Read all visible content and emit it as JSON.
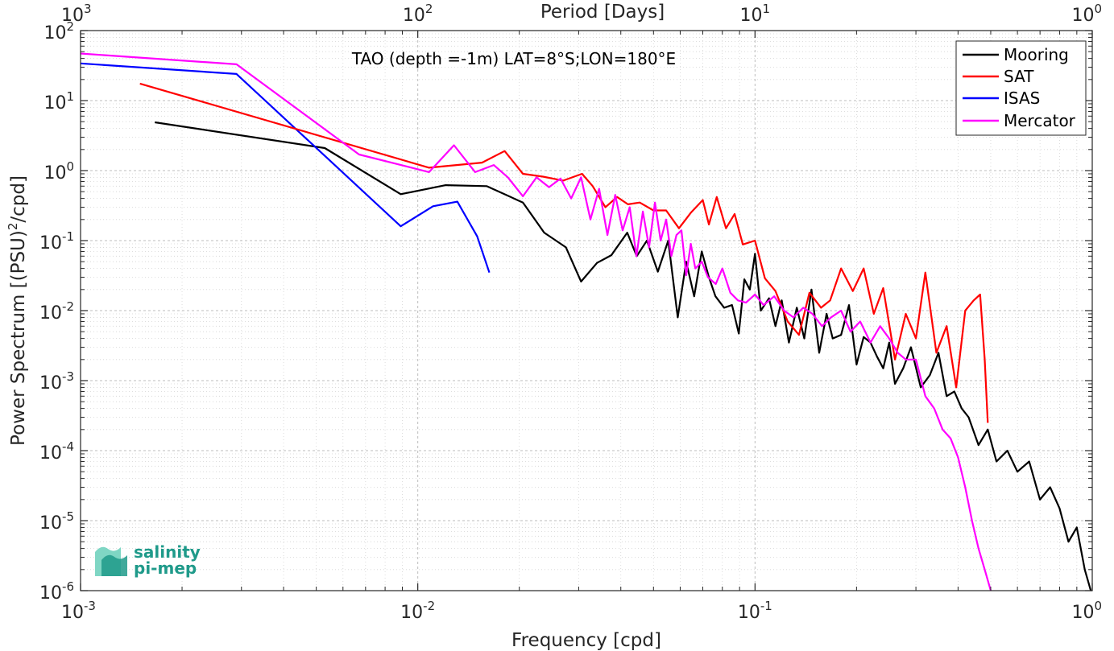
{
  "chart_data": {
    "type": "line",
    "title": "TAO (depth =-1m) LAT=8°S;LON=180°E",
    "xlabel": "Frequency [cpd]",
    "ylabel": "Power Spectrum [(PSU)²/cpd]",
    "ylabel_parts": {
      "before": "Power Spectrum [(PSU)",
      "sup": "2",
      "after": "/cpd]"
    },
    "top_xlabel": "Period [Days]",
    "xscale": "log",
    "yscale": "log",
    "xlim": [
      0.001,
      1
    ],
    "ylim": [
      1e-06,
      100
    ],
    "grid": true,
    "legend_position": "top-right",
    "x_ticks": [
      {
        "value": 0.001,
        "base": "10",
        "exp": "-3"
      },
      {
        "value": 0.01,
        "base": "10",
        "exp": "-2"
      },
      {
        "value": 0.1,
        "base": "10",
        "exp": "-1"
      },
      {
        "value": 1,
        "base": "10",
        "exp": "0"
      }
    ],
    "top_ticks": [
      {
        "freq": 0.001,
        "base": "10",
        "exp": "3"
      },
      {
        "freq": 0.01,
        "base": "10",
        "exp": "2"
      },
      {
        "freq": 0.1,
        "base": "10",
        "exp": "1"
      },
      {
        "freq": 1,
        "base": "10",
        "exp": "0"
      }
    ],
    "y_ticks": [
      {
        "value": 100,
        "base": "10",
        "exp": "2"
      },
      {
        "value": 10,
        "base": "10",
        "exp": "1"
      },
      {
        "value": 1,
        "base": "10",
        "exp": "0"
      },
      {
        "value": 0.1,
        "base": "10",
        "exp": "-1"
      },
      {
        "value": 0.01,
        "base": "10",
        "exp": "-2"
      },
      {
        "value": 0.001,
        "base": "10",
        "exp": "-3"
      },
      {
        "value": 0.0001,
        "base": "10",
        "exp": "-4"
      },
      {
        "value": 1e-05,
        "base": "10",
        "exp": "-5"
      },
      {
        "value": 1e-06,
        "base": "10",
        "exp": "-6"
      }
    ],
    "series": [
      {
        "name": "Mooring",
        "color": "#000000",
        "x": [
          0.00166,
          0.0053,
          0.0089,
          0.0121,
          0.016,
          0.0205,
          0.0237,
          0.0275,
          0.0305,
          0.034,
          0.0375,
          0.0418,
          0.0446,
          0.0478,
          0.0515,
          0.0553,
          0.059,
          0.0625,
          0.066,
          0.0695,
          0.073,
          0.0763,
          0.081,
          0.0855,
          0.0895,
          0.093,
          0.0965,
          0.1,
          0.104,
          0.11,
          0.115,
          0.12,
          0.126,
          0.133,
          0.14,
          0.147,
          0.155,
          0.163,
          0.17,
          0.18,
          0.19,
          0.2,
          0.21,
          0.22,
          0.23,
          0.24,
          0.25,
          0.26,
          0.275,
          0.29,
          0.31,
          0.33,
          0.35,
          0.37,
          0.39,
          0.41,
          0.43,
          0.46,
          0.49,
          0.52,
          0.56,
          0.6,
          0.65,
          0.7,
          0.75,
          0.8,
          0.85,
          0.9,
          0.95,
          0.99
        ],
        "values": [
          4.9,
          2.1,
          0.46,
          0.62,
          0.6,
          0.35,
          0.13,
          0.08,
          0.026,
          0.048,
          0.062,
          0.13,
          0.06,
          0.1,
          0.036,
          0.1,
          0.008,
          0.05,
          0.016,
          0.07,
          0.03,
          0.016,
          0.011,
          0.012,
          0.0047,
          0.028,
          0.02,
          0.065,
          0.01,
          0.015,
          0.006,
          0.014,
          0.0035,
          0.011,
          0.004,
          0.02,
          0.0025,
          0.009,
          0.004,
          0.0045,
          0.012,
          0.0017,
          0.0042,
          0.0035,
          0.0022,
          0.0015,
          0.0035,
          0.0009,
          0.0015,
          0.003,
          0.0008,
          0.0012,
          0.0025,
          0.0006,
          0.0007,
          0.0004,
          0.0003,
          0.00012,
          0.0002,
          7e-05,
          0.0001,
          5e-05,
          7e-05,
          2e-05,
          3e-05,
          1.5e-05,
          5e-06,
          8e-06,
          2e-06,
          1e-06
        ]
      },
      {
        "name": "SAT",
        "color": "#ff0000",
        "x": [
          0.0015,
          0.0108,
          0.0155,
          0.0181,
          0.0205,
          0.0235,
          0.027,
          0.0307,
          0.033,
          0.036,
          0.039,
          0.042,
          0.0455,
          0.05,
          0.0545,
          0.0595,
          0.0645,
          0.07,
          0.073,
          0.077,
          0.082,
          0.087,
          0.092,
          0.1,
          0.107,
          0.115,
          0.125,
          0.135,
          0.145,
          0.157,
          0.167,
          0.18,
          0.195,
          0.21,
          0.225,
          0.24,
          0.26,
          0.28,
          0.3,
          0.32,
          0.345,
          0.37,
          0.395,
          0.42,
          0.445,
          0.465,
          0.48,
          0.49
        ],
        "values": [
          17.5,
          1.1,
          1.3,
          1.9,
          0.9,
          0.82,
          0.72,
          0.9,
          0.6,
          0.3,
          0.42,
          0.33,
          0.35,
          0.27,
          0.27,
          0.15,
          0.25,
          0.38,
          0.17,
          0.42,
          0.15,
          0.24,
          0.088,
          0.1,
          0.029,
          0.019,
          0.007,
          0.0045,
          0.018,
          0.011,
          0.014,
          0.04,
          0.019,
          0.04,
          0.009,
          0.021,
          0.002,
          0.009,
          0.004,
          0.035,
          0.0025,
          0.006,
          0.0008,
          0.01,
          0.014,
          0.017,
          0.002,
          0.00025
        ]
      },
      {
        "name": "ISAS",
        "color": "#0000ff",
        "x": [
          0.001,
          0.0029,
          0.0089,
          0.0111,
          0.0131,
          0.015,
          0.0163
        ],
        "values": [
          34,
          24,
          0.16,
          0.31,
          0.36,
          0.115,
          0.035
        ]
      },
      {
        "name": "Mercator",
        "color": "#ff00ff",
        "x": [
          0.001,
          0.0029,
          0.0067,
          0.0108,
          0.0128,
          0.0148,
          0.0168,
          0.0185,
          0.0205,
          0.0225,
          0.0245,
          0.0265,
          0.0285,
          0.0305,
          0.0325,
          0.0345,
          0.0365,
          0.0385,
          0.0405,
          0.0425,
          0.0445,
          0.0465,
          0.0485,
          0.0505,
          0.0525,
          0.0545,
          0.0565,
          0.0585,
          0.0605,
          0.0625,
          0.0645,
          0.0665,
          0.0695,
          0.0725,
          0.0765,
          0.08,
          0.0845,
          0.089,
          0.094,
          0.1,
          0.106,
          0.114,
          0.122,
          0.13,
          0.139,
          0.148,
          0.158,
          0.168,
          0.18,
          0.192,
          0.205,
          0.22,
          0.235,
          0.25,
          0.265,
          0.28,
          0.3,
          0.32,
          0.34,
          0.36,
          0.38,
          0.4,
          0.42,
          0.44,
          0.46,
          0.48,
          0.5
        ],
        "values": [
          47,
          33,
          1.7,
          0.95,
          2.3,
          0.95,
          1.2,
          0.8,
          0.43,
          0.8,
          0.58,
          0.77,
          0.4,
          0.8,
          0.2,
          0.55,
          0.12,
          0.45,
          0.14,
          0.3,
          0.06,
          0.26,
          0.08,
          0.35,
          0.1,
          0.2,
          0.06,
          0.12,
          0.14,
          0.032,
          0.09,
          0.04,
          0.05,
          0.03,
          0.024,
          0.04,
          0.018,
          0.014,
          0.013,
          0.017,
          0.012,
          0.016,
          0.01,
          0.008,
          0.011,
          0.009,
          0.006,
          0.008,
          0.01,
          0.005,
          0.007,
          0.0035,
          0.006,
          0.004,
          0.0025,
          0.002,
          0.002,
          0.0006,
          0.0004,
          0.0002,
          0.00015,
          8e-05,
          3e-05,
          1e-05,
          4e-06,
          2e-06,
          1e-06
        ]
      }
    ],
    "logo": {
      "line1": "salinity",
      "line2": "pi-mep"
    }
  }
}
